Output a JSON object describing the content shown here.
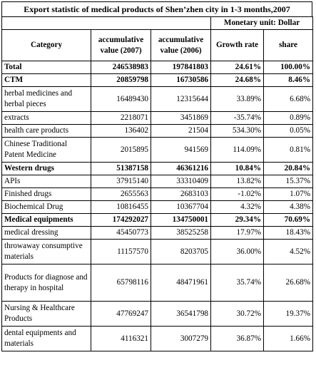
{
  "title": "Export statistic of medical products of Shen’zhen city in 1-3 months,2007",
  "unit": "Monetary unit: Dollar",
  "headers": {
    "category": "Category",
    "acc2007": "accumulative value (2007)",
    "acc2006": "accumulative value (2006)",
    "growth": "Growth rate",
    "share": "share"
  },
  "rows": [
    {
      "category": "Total",
      "acc2007": "246538983",
      "acc2006": "197841803",
      "growth": "24.61%",
      "share": "100.00%",
      "bold": true
    },
    {
      "category": "CTM",
      "acc2007": "20859798",
      "acc2006": "16730586",
      "growth": "24.68%",
      "share": "8.46%",
      "bold": true
    },
    {
      "category": "herbal medicines and herbal pieces",
      "acc2007": "16489430",
      "acc2006": "12315644",
      "growth": "33.89%",
      "share": "6.68%"
    },
    {
      "category": "extracts",
      "acc2007": "2218071",
      "acc2006": "3451869",
      "growth": "-35.74%",
      "share": "0.89%"
    },
    {
      "category": "health care products",
      "acc2007": "136402",
      "acc2006": "21504",
      "growth": "534.30%",
      "share": "0.05%"
    },
    {
      "category": "Chinese Traditional Patent Medicine",
      "acc2007": "2015895",
      "acc2006": "941569",
      "growth": "114.09%",
      "share": "0.81%"
    },
    {
      "category": "Western drugs",
      "acc2007": "51387158",
      "acc2006": "46361216",
      "growth": "10.84%",
      "share": "20.84%",
      "bold": true
    },
    {
      "category": "APIs",
      "acc2007": "37915140",
      "acc2006": "33310409",
      "growth": "13.82%",
      "share": "15.37%"
    },
    {
      "category": "Finished drugs",
      "acc2007": "2655563",
      "acc2006": "2683103",
      "growth": "-1.02%",
      "share": "1.07%"
    },
    {
      "category": "Biochemical Drug",
      "acc2007": "10816455",
      "acc2006": "10367704",
      "growth": "4.32%",
      "share": "4.38%"
    },
    {
      "category": "Medical equipments",
      "acc2007": "174292027",
      "acc2006": "134750001",
      "growth": "29.34%",
      "share": "70.69%",
      "bold": true
    },
    {
      "category": "medical dressing",
      "acc2007": "45450773",
      "acc2006": "38525258",
      "growth": "17.97%",
      "share": "18.43%"
    },
    {
      "category": "throwaway consumptive materials",
      "acc2007": "11157570",
      "acc2006": "8203705",
      "growth": "36.00%",
      "share": "4.52%"
    },
    {
      "category": "Products for diagnose and therapy in hospital",
      "acc2007": "65798116",
      "acc2006": "48471961",
      "growth": "35.74%",
      "share": "26.68%"
    },
    {
      "category": "Nursing & Healthcare Products",
      "acc2007": "47769247",
      "acc2006": "36541798",
      "growth": "30.72%",
      "share": "19.37%"
    },
    {
      "category": "dental equipments and materials",
      "acc2007": "4116321",
      "acc2006": "3007279",
      "growth": "36.87%",
      "share": "1.66%"
    }
  ]
}
